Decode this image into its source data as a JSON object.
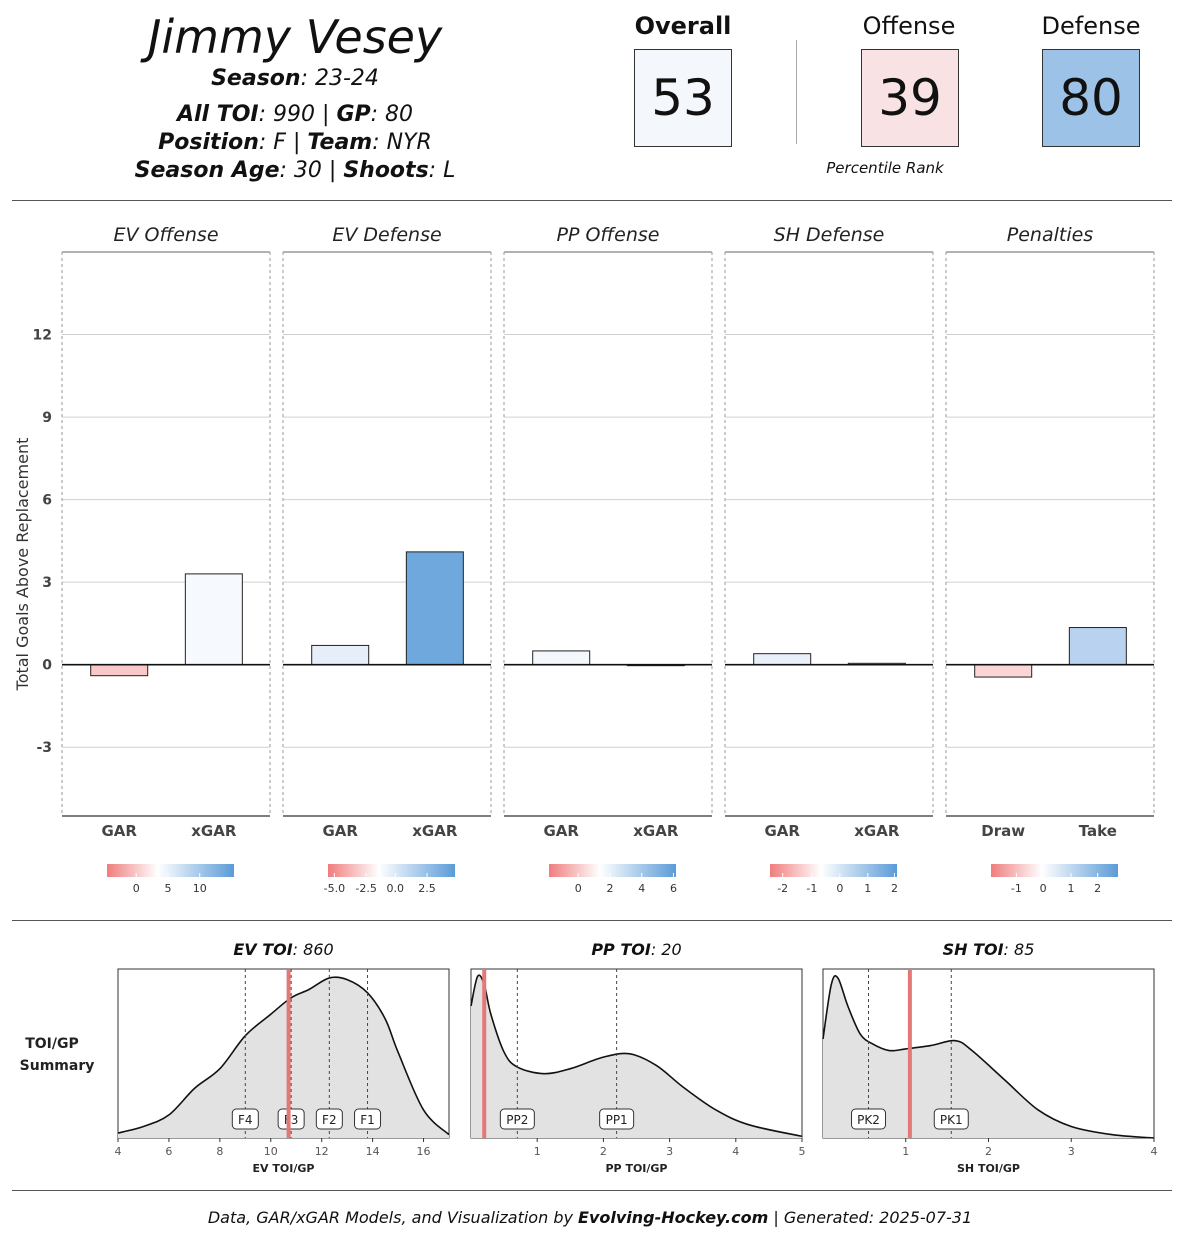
{
  "header": {
    "name": "Jimmy Vesey",
    "season_label": "Season",
    "season": "23-24",
    "toi_label": "All TOI",
    "toi": "990",
    "gp_label": "GP",
    "gp": "80",
    "position_label": "Position",
    "position": "F",
    "team_label": "Team",
    "team": "NYR",
    "age_label": "Season Age",
    "age": "30",
    "shoots_label": "Shoots",
    "shoots": "L"
  },
  "ranks": {
    "overall_label": "Overall",
    "overall": "53",
    "offense_label": "Offense",
    "offense": "39",
    "defense_label": "Defense",
    "defense": "80",
    "caption": "Percentile Rank",
    "colors": {
      "overall": "#f4f8fc",
      "offense": "#f8e2e4",
      "defense": "#9cc3e7"
    }
  },
  "chart_data": [
    {
      "type": "bar",
      "ylabel": "Total Goals Above Replacement",
      "ylim": [
        -5.5,
        15
      ],
      "yticks": [
        -3,
        0,
        3,
        6,
        9,
        12
      ],
      "grid": true,
      "panels": [
        {
          "title": "EV Offense",
          "categories": [
            "GAR",
            "xGAR"
          ],
          "values": [
            -0.4,
            3.3
          ],
          "colors": [
            "#f9c8c8",
            "#f6f9fe"
          ],
          "scale": {
            "ticks": [
              "0",
              "5",
              "10"
            ],
            "tick_pos": [
              0.23,
              0.48,
              0.73
            ]
          }
        },
        {
          "title": "EV Defense",
          "categories": [
            "GAR",
            "xGAR"
          ],
          "values": [
            0.7,
            4.1
          ],
          "colors": [
            "#e6eef9",
            "#6ea8dc"
          ],
          "scale": {
            "ticks": [
              "-5.0",
              "-2.5",
              "0.0",
              "2.5"
            ],
            "tick_pos": [
              0.05,
              0.3,
              0.53,
              0.78
            ]
          }
        },
        {
          "title": "PP Offense",
          "categories": [
            "GAR",
            "xGAR"
          ],
          "values": [
            0.5,
            0.0
          ],
          "colors": [
            "#f4f7fc",
            "#ffffff"
          ],
          "scale": {
            "ticks": [
              "0",
              "2",
              "4",
              "6"
            ],
            "tick_pos": [
              0.23,
              0.48,
              0.73,
              0.98
            ]
          }
        },
        {
          "title": "SH Defense",
          "categories": [
            "GAR",
            "xGAR"
          ],
          "values": [
            0.4,
            0.05
          ],
          "colors": [
            "#e9f0fa",
            "#ffffff"
          ],
          "scale": {
            "ticks": [
              "-2",
              "-1",
              "0",
              "1",
              "2"
            ],
            "tick_pos": [
              0.1,
              0.33,
              0.55,
              0.77,
              0.98
            ]
          }
        },
        {
          "title": "Penalties",
          "categories": [
            "Draw",
            "Take"
          ],
          "values": [
            -0.45,
            1.35
          ],
          "colors": [
            "#fbd6d6",
            "#b8d2ef"
          ],
          "scale": {
            "ticks": [
              "-1",
              "0",
              "1",
              "2"
            ],
            "tick_pos": [
              0.2,
              0.41,
              0.63,
              0.84
            ]
          }
        }
      ]
    },
    {
      "type": "area",
      "row_label": [
        "TOI/GP",
        "Summary"
      ],
      "panels": [
        {
          "title_bold": "EV TOI",
          "title_value": "860",
          "xlabel": "EV TOI/GP",
          "xlim": [
            4,
            17
          ],
          "xticks": [
            4,
            6,
            8,
            10,
            12,
            14,
            16
          ],
          "player_value": 10.7,
          "markers": [
            {
              "label": "F4",
              "x": 9.0
            },
            {
              "label": "F3",
              "x": 10.8
            },
            {
              "label": "F2",
              "x": 12.3
            },
            {
              "label": "F1",
              "x": 13.8
            }
          ],
          "density": [
            [
              4,
              0.03
            ],
            [
              5,
              0.07
            ],
            [
              6,
              0.14
            ],
            [
              7,
              0.3
            ],
            [
              8,
              0.42
            ],
            [
              9,
              0.62
            ],
            [
              10,
              0.75
            ],
            [
              10.8,
              0.85
            ],
            [
              11.5,
              0.9
            ],
            [
              12.3,
              0.97
            ],
            [
              13,
              0.96
            ],
            [
              13.8,
              0.88
            ],
            [
              14.5,
              0.72
            ],
            [
              15,
              0.52
            ],
            [
              16,
              0.17
            ],
            [
              17,
              0.02
            ]
          ]
        },
        {
          "title_bold": "PP TOI",
          "title_value": "20",
          "xlabel": "PP TOI/GP",
          "xlim": [
            0,
            5
          ],
          "xticks": [
            1,
            2,
            3,
            4,
            5
          ],
          "player_value": 0.2,
          "markers": [
            {
              "label": "PP2",
              "x": 0.7
            },
            {
              "label": "PP1",
              "x": 2.2
            }
          ],
          "density": [
            [
              0,
              0.8
            ],
            [
              0.1,
              0.98
            ],
            [
              0.2,
              0.93
            ],
            [
              0.3,
              0.75
            ],
            [
              0.5,
              0.52
            ],
            [
              0.7,
              0.43
            ],
            [
              1.1,
              0.39
            ],
            [
              1.5,
              0.42
            ],
            [
              2.0,
              0.49
            ],
            [
              2.4,
              0.51
            ],
            [
              2.8,
              0.44
            ],
            [
              3.2,
              0.31
            ],
            [
              3.7,
              0.17
            ],
            [
              4.2,
              0.08
            ],
            [
              5,
              0.01
            ]
          ]
        },
        {
          "title_bold": "SH TOI",
          "title_value": "85",
          "xlabel": "SH TOI/GP",
          "xlim": [
            0,
            4
          ],
          "xticks": [
            1,
            2,
            3,
            4
          ],
          "player_value": 1.05,
          "markers": [
            {
              "label": "PK2",
              "x": 0.55
            },
            {
              "label": "PK1",
              "x": 1.55
            }
          ],
          "density": [
            [
              0,
              0.6
            ],
            [
              0.1,
              0.93
            ],
            [
              0.18,
              0.97
            ],
            [
              0.3,
              0.8
            ],
            [
              0.45,
              0.63
            ],
            [
              0.6,
              0.57
            ],
            [
              0.8,
              0.53
            ],
            [
              1.0,
              0.54
            ],
            [
              1.3,
              0.56
            ],
            [
              1.6,
              0.59
            ],
            [
              1.8,
              0.53
            ],
            [
              2.2,
              0.35
            ],
            [
              2.6,
              0.17
            ],
            [
              3.0,
              0.07
            ],
            [
              3.5,
              0.02
            ],
            [
              4,
              0.0
            ]
          ]
        }
      ]
    }
  ],
  "footer": {
    "prefix": "Data, GAR/xGAR Models, and Visualization by ",
    "brand": "Evolving-Hockey.com",
    "suffix": " | Generated: 2025-07-31"
  }
}
